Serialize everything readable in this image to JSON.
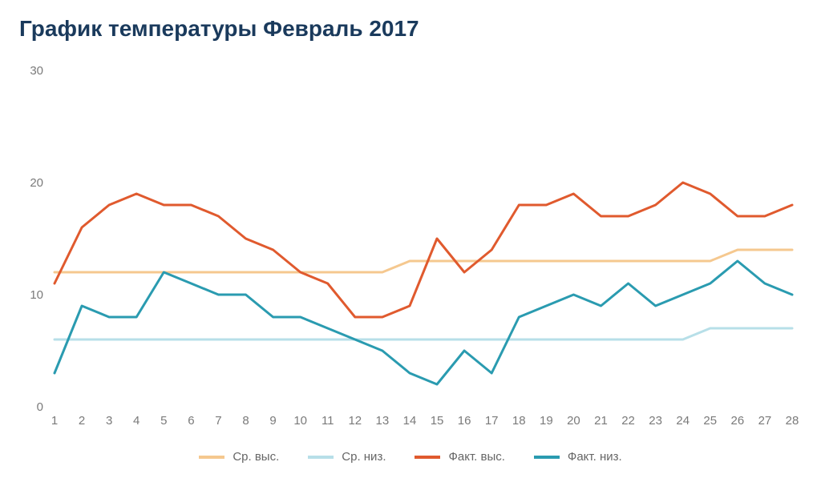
{
  "title": "График температуры Февраль 2017",
  "chart": {
    "type": "line",
    "background_color": "#ffffff",
    "title_fontsize": 28,
    "title_fontweight": "bold",
    "title_color": "#1a3a5c",
    "axis_label_fontsize": 15,
    "axis_label_color": "#7a7a7a",
    "ylim": [
      0,
      30
    ],
    "ytick_step": 10,
    "yticks": [
      0,
      10,
      20,
      30
    ],
    "xlim": [
      1,
      28
    ],
    "xticks": [
      1,
      2,
      3,
      4,
      5,
      6,
      7,
      8,
      9,
      10,
      11,
      12,
      13,
      14,
      15,
      16,
      17,
      18,
      19,
      20,
      21,
      22,
      23,
      24,
      25,
      26,
      27,
      28
    ],
    "line_width_main": 3,
    "line_width_avg": 3,
    "series": [
      {
        "key": "avg_high",
        "label": "Ср. выс.",
        "color": "#f5c88f",
        "data": [
          12,
          12,
          12,
          12,
          12,
          12,
          12,
          12,
          12,
          12,
          12,
          12,
          12,
          13,
          13,
          13,
          13,
          13,
          13,
          13,
          13,
          13,
          13,
          13,
          13,
          14,
          14,
          14
        ]
      },
      {
        "key": "avg_low",
        "label": "Ср. низ.",
        "color": "#b7dfe8",
        "data": [
          6,
          6,
          6,
          6,
          6,
          6,
          6,
          6,
          6,
          6,
          6,
          6,
          6,
          6,
          6,
          6,
          6,
          6,
          6,
          6,
          6,
          6,
          6,
          6,
          7,
          7,
          7,
          7
        ]
      },
      {
        "key": "actual_high",
        "label": "Факт. выс.",
        "color": "#e05a2e",
        "data": [
          11,
          16,
          18,
          19,
          18,
          18,
          17,
          15,
          14,
          12,
          11,
          8,
          8,
          9,
          15,
          12,
          14,
          18,
          18,
          19,
          17,
          17,
          18,
          20,
          19,
          17,
          17,
          18
        ]
      },
      {
        "key": "actual_low",
        "label": "Факт. низ.",
        "color": "#2a9bb0",
        "data": [
          3,
          9,
          8,
          8,
          12,
          11,
          10,
          10,
          8,
          8,
          7,
          6,
          5,
          3,
          2,
          5,
          3,
          8,
          9,
          10,
          9,
          11,
          9,
          10,
          11,
          13,
          11,
          10
        ]
      }
    ],
    "legend": {
      "position": "bottom",
      "fontsize": 15,
      "color": "#666666",
      "swatch_width": 32,
      "swatch_height": 4,
      "gap": 36
    }
  }
}
